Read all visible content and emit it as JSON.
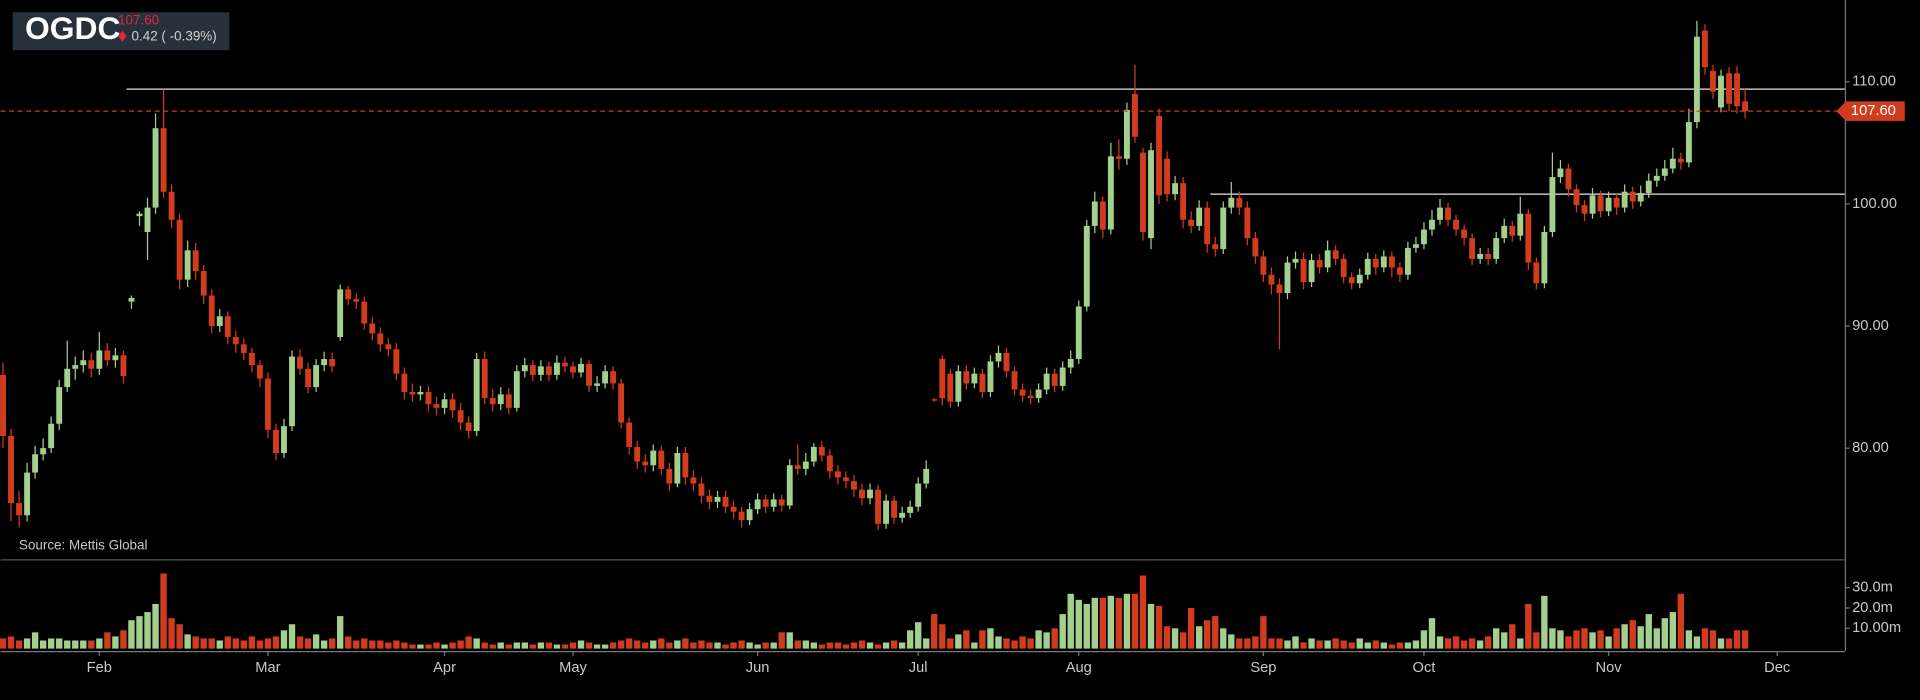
{
  "chart_data": {
    "type": "candlestick",
    "title": "OGDC",
    "last_price": {
      "value": 107.6,
      "label": "107.60"
    },
    "change": "0.42 ( -0.39%)",
    "source": "Source: Mettis Global",
    "up_color": "#a3d08c",
    "down_color": "#d23c1e",
    "ylim": [
      70.9,
      116.7
    ],
    "yticks": [
      {
        "value": 80,
        "label": "80.00"
      },
      {
        "value": 90,
        "label": "90.00"
      },
      {
        "value": 100,
        "label": "100.00"
      },
      {
        "value": 110,
        "label": "110.00"
      }
    ],
    "volume_ylim": [
      0,
      44
    ],
    "volume_yticks": [
      {
        "value": 10,
        "label": "10.00m"
      },
      {
        "value": 20,
        "label": "20.0m"
      },
      {
        "value": 30,
        "label": "30.0m"
      }
    ],
    "reference_lines": [
      {
        "value": 109.4,
        "start": 16
      },
      {
        "value": 100.8,
        "start": 151
      }
    ],
    "categories": [
      null,
      null,
      null,
      null,
      null,
      null,
      null,
      null,
      null,
      null,
      null,
      null,
      "Feb",
      null,
      null,
      null,
      null,
      null,
      null,
      null,
      null,
      null,
      null,
      null,
      null,
      null,
      null,
      null,
      null,
      null,
      null,
      null,
      null,
      "Mar",
      null,
      null,
      null,
      null,
      null,
      null,
      null,
      null,
      null,
      null,
      null,
      null,
      null,
      null,
      null,
      null,
      null,
      null,
      null,
      null,
      null,
      "Apr",
      null,
      null,
      null,
      null,
      null,
      null,
      null,
      null,
      null,
      null,
      null,
      null,
      null,
      null,
      null,
      "May",
      null,
      null,
      null,
      null,
      null,
      null,
      null,
      null,
      null,
      null,
      null,
      null,
      null,
      null,
      null,
      null,
      null,
      null,
      null,
      null,
      null,
      null,
      "Jun",
      null,
      null,
      null,
      null,
      null,
      null,
      null,
      null,
      null,
      null,
      null,
      null,
      null,
      null,
      null,
      null,
      null,
      null,
      null,
      "Jul",
      null,
      null,
      null,
      null,
      null,
      null,
      null,
      null,
      null,
      null,
      null,
      null,
      null,
      null,
      null,
      null,
      null,
      null,
      null,
      "Aug",
      null,
      null,
      null,
      null,
      null,
      null,
      null,
      null,
      null,
      null,
      null,
      null,
      null,
      null,
      null,
      null,
      null,
      null,
      null,
      null,
      null,
      null,
      "Sep",
      null,
      null,
      null,
      null,
      null,
      null,
      null,
      null,
      null,
      null,
      null,
      null,
      null,
      null,
      null,
      null,
      null,
      null,
      null,
      "Oct",
      null,
      null,
      null,
      null,
      null,
      null,
      null,
      null,
      null,
      null,
      null,
      null,
      null,
      null,
      null,
      null,
      null,
      null,
      null,
      null,
      null,
      null,
      "Nov",
      null,
      null,
      null,
      null,
      null,
      null,
      null,
      null,
      null,
      null,
      null,
      null,
      null,
      null,
      null,
      null,
      null,
      null,
      null,
      null,
      "Dec"
    ],
    "open": [
      86.0,
      81.0,
      75.5,
      74.5,
      78.0,
      79.5,
      80.0,
      82.0,
      85.0,
      86.5,
      86.8,
      87.2,
      86.5,
      88.0,
      87.2,
      87.6,
      92.0,
      99.0,
      97.7,
      99.7,
      106.2,
      101.0,
      98.7,
      93.8,
      96.2,
      94.5,
      92.5,
      90.0,
      90.8,
      89.1,
      88.5,
      87.8,
      86.8,
      85.7,
      81.5,
      79.6,
      81.8,
      87.5,
      86.5,
      85.0,
      86.8,
      87.3,
      89.1,
      93.0,
      92.2,
      92.0,
      90.2,
      89.4,
      88.5,
      88.1,
      86.1,
      84.6,
      84.4,
      84.6,
      83.6,
      83.3,
      84.0,
      83.1,
      82.1,
      81.4,
      87.3,
      84.1,
      83.6,
      84.4,
      83.3,
      86.3,
      86.8,
      86.0,
      86.7,
      86.0,
      87.0,
      86.7,
      86.2,
      86.9,
      85.1,
      85.3,
      86.3,
      85.3,
      82.1,
      80.1,
      78.9,
      78.6,
      79.8,
      78.3,
      77.1,
      79.6,
      77.6,
      77.1,
      76.1,
      75.6,
      76.0,
      75.2,
      74.8,
      74.1,
      75.0,
      75.8,
      75.2,
      75.8,
      75.3,
      78.6,
      78.3,
      78.9,
      80.1,
      79.4,
      78.1,
      77.6,
      77.3,
      76.6,
      75.9,
      76.6,
      73.8,
      75.7,
      74.3,
      74.7,
      75.2,
      77.1,
      84.0,
      87.3,
      86.1,
      83.8,
      86.3,
      85.3,
      86.1,
      84.6,
      87.1,
      87.8,
      86.3,
      84.8,
      84.3,
      84.1,
      84.8,
      86.1,
      85.1,
      86.6,
      87.3,
      91.6,
      98.2,
      100.2,
      97.9,
      103.9,
      103.7,
      109.0,
      104.2,
      97.2,
      107.2,
      103.7,
      100.8,
      101.7,
      98.7,
      98.2,
      99.7,
      96.7,
      96.3,
      99.7,
      100.5,
      99.7,
      97.2,
      95.7,
      94.2,
      93.4,
      92.7,
      95.2,
      95.5,
      93.6,
      95.4,
      94.8,
      96.2,
      95.5,
      94.0,
      93.5,
      94.2,
      95.5,
      94.8,
      95.7,
      94.8,
      94.2,
      96.4,
      96.7,
      97.9,
      98.7,
      99.7,
      98.7,
      97.9,
      97.2,
      95.5,
      95.9,
      95.5,
      97.2,
      98.2,
      97.4,
      99.2,
      95.2,
      93.5,
      97.7,
      102.2,
      102.9,
      101.2,
      99.9,
      99.2,
      100.7,
      99.4,
      100.5,
      99.7,
      101.0,
      100.2,
      100.9,
      101.9,
      102.3,
      102.9,
      103.7,
      103.4,
      106.7,
      114.2,
      110.9,
      107.9,
      110.7,
      110.7,
      108.4,
      null,
      null,
      null,
      null
    ],
    "high": [
      87.0,
      81.6,
      76.5,
      78.8,
      80.2,
      80.8,
      82.6,
      85.6,
      88.8,
      87.5,
      88.0,
      87.8,
      89.5,
      88.6,
      88.2,
      88.0,
      92.5,
      99.4,
      100.5,
      107.4,
      109.4,
      101.6,
      99.2,
      97.0,
      96.8,
      95.0,
      93.0,
      91.4,
      91.2,
      89.6,
      89.0,
      88.2,
      87.2,
      86.2,
      82.0,
      82.4,
      88.0,
      88.1,
      87.0,
      87.3,
      87.9,
      87.8,
      93.4,
      93.3,
      92.7,
      92.4,
      90.7,
      89.9,
      89.0,
      88.6,
      86.6,
      85.3,
      85.1,
      85.1,
      84.2,
      84.5,
      84.5,
      83.7,
      82.6,
      87.8,
      87.9,
      84.8,
      85.0,
      84.9,
      86.8,
      87.4,
      87.2,
      87.2,
      87.1,
      87.6,
      87.5,
      87.1,
      87.4,
      87.2,
      85.9,
      86.8,
      86.7,
      85.7,
      82.5,
      80.6,
      79.5,
      80.3,
      80.2,
      78.8,
      80.1,
      80.1,
      78.2,
      77.6,
      76.6,
      76.5,
      76.5,
      75.7,
      75.2,
      75.5,
      76.3,
      76.2,
      76.3,
      76.2,
      79.1,
      80.3,
      79.6,
      80.4,
      80.6,
      79.9,
      78.6,
      78.1,
      77.8,
      77.1,
      77.1,
      77.0,
      76.2,
      76.1,
      75.2,
      75.7,
      77.6,
      79.0,
      84.1,
      87.6,
      86.5,
      86.8,
      86.8,
      86.6,
      86.5,
      87.6,
      88.4,
      88.2,
      86.7,
      85.3,
      84.8,
      85.3,
      86.6,
      86.5,
      87.1,
      88.0,
      92.1,
      98.7,
      101.0,
      100.6,
      105.0,
      105.3,
      108.3,
      111.4,
      104.6,
      105.0,
      107.8,
      104.3,
      102.3,
      102.2,
      99.4,
      100.3,
      100.2,
      97.3,
      100.2,
      101.8,
      101.0,
      100.2,
      97.7,
      96.2,
      94.8,
      93.9,
      95.7,
      96.1,
      96.0,
      95.9,
      95.9,
      97.0,
      96.6,
      95.9,
      94.4,
      94.7,
      96.0,
      95.9,
      96.2,
      96.1,
      95.2,
      96.9,
      97.3,
      98.5,
      99.5,
      100.4,
      100.1,
      99.1,
      98.3,
      97.6,
      96.4,
      96.4,
      97.7,
      98.8,
      98.6,
      100.6,
      99.6,
      95.6,
      98.2,
      104.2,
      103.6,
      103.3,
      101.6,
      100.3,
      101.3,
      101.1,
      101.0,
      100.9,
      101.6,
      101.4,
      101.5,
      102.5,
      102.9,
      103.6,
      104.6,
      104.2,
      107.8,
      115.0,
      114.7,
      111.4,
      111.0,
      111.2,
      111.3,
      109.4,
      null,
      null,
      null,
      null
    ],
    "low": [
      80.0,
      74.0,
      73.5,
      74.0,
      77.5,
      79.0,
      79.6,
      81.5,
      84.6,
      85.6,
      86.2,
      85.8,
      86.0,
      86.7,
      86.6,
      85.3,
      91.4,
      98.2,
      95.4,
      99.2,
      100.5,
      98.0,
      93.0,
      93.2,
      93.8,
      91.8,
      89.4,
      89.5,
      88.5,
      87.8,
      87.2,
      86.2,
      85.0,
      80.8,
      79.0,
      79.2,
      81.4,
      86.0,
      84.5,
      84.6,
      86.3,
      86.2,
      88.8,
      91.7,
      91.4,
      89.7,
      88.8,
      87.9,
      87.5,
      85.6,
      84.0,
      83.8,
      83.9,
      83.0,
      82.7,
      82.8,
      82.5,
      81.5,
      80.8,
      81.0,
      83.6,
      83.0,
      83.1,
      82.8,
      83.0,
      85.8,
      85.5,
      85.5,
      85.5,
      85.6,
      86.2,
      85.7,
      85.8,
      84.6,
      84.6,
      84.9,
      84.8,
      81.6,
      79.5,
      78.3,
      78.0,
      78.1,
      77.8,
      76.5,
      76.8,
      77.0,
      76.5,
      75.5,
      75.0,
      75.1,
      74.7,
      74.2,
      73.5,
      73.7,
      74.6,
      74.7,
      74.8,
      74.8,
      75.0,
      77.8,
      77.8,
      78.5,
      78.9,
      77.5,
      77.0,
      76.7,
      76.0,
      75.3,
      75.4,
      73.3,
      73.4,
      73.8,
      73.9,
      74.3,
      74.8,
      76.7,
      83.8,
      83.5,
      83.3,
      83.4,
      84.8,
      84.9,
      84.1,
      84.2,
      86.6,
      85.8,
      84.3,
      83.8,
      83.6,
      83.7,
      84.4,
      84.6,
      84.7,
      86.1,
      86.9,
      91.2,
      97.6,
      97.2,
      97.5,
      102.8,
      103.2,
      105.0,
      97.0,
      96.3,
      100.0,
      100.2,
      100.3,
      98.0,
      97.6,
      97.8,
      96.0,
      95.7,
      95.9,
      99.2,
      99.1,
      96.6,
      95.1,
      93.6,
      92.6,
      88.1,
      92.2,
      94.7,
      93.0,
      93.2,
      94.3,
      94.4,
      95.0,
      93.5,
      93.0,
      93.1,
      93.8,
      94.2,
      94.4,
      94.0,
      93.6,
      93.8,
      96.0,
      96.3,
      97.4,
      98.3,
      98.2,
      97.4,
      96.6,
      95.0,
      95.1,
      95.0,
      95.1,
      96.8,
      96.9,
      97.0,
      94.6,
      93.0,
      93.1,
      97.3,
      101.7,
      100.6,
      99.3,
      98.6,
      98.8,
      98.9,
      99.0,
      99.1,
      99.3,
      99.6,
      99.8,
      100.5,
      101.4,
      101.9,
      102.5,
      102.8,
      103.0,
      106.2,
      110.6,
      108.6,
      107.5,
      107.6,
      107.4,
      107.0,
      null,
      null,
      null,
      null
    ],
    "close": [
      81.0,
      75.5,
      74.5,
      78.0,
      79.5,
      80.0,
      82.0,
      85.0,
      86.5,
      86.8,
      87.2,
      86.5,
      88.0,
      87.2,
      87.6,
      85.9,
      92.3,
      99.2,
      99.7,
      106.2,
      101.0,
      98.7,
      93.8,
      96.2,
      94.5,
      92.5,
      90.0,
      90.8,
      89.1,
      88.5,
      87.8,
      86.8,
      85.7,
      81.5,
      79.6,
      81.8,
      87.5,
      86.5,
      85.0,
      86.8,
      87.3,
      86.7,
      93.0,
      92.2,
      92.0,
      90.2,
      89.4,
      88.5,
      88.1,
      86.1,
      84.6,
      84.4,
      84.6,
      83.6,
      83.3,
      84.0,
      83.1,
      82.1,
      81.4,
      87.3,
      84.1,
      83.6,
      84.4,
      83.3,
      86.3,
      86.8,
      86.0,
      86.7,
      86.0,
      87.0,
      86.7,
      86.2,
      86.9,
      85.1,
      85.3,
      86.3,
      85.3,
      82.1,
      80.1,
      78.9,
      78.6,
      79.8,
      78.3,
      77.1,
      79.6,
      77.6,
      77.1,
      76.1,
      75.6,
      76.0,
      75.2,
      74.8,
      74.1,
      75.0,
      75.8,
      75.2,
      75.8,
      75.3,
      78.6,
      78.3,
      78.9,
      80.1,
      79.4,
      78.1,
      77.6,
      77.3,
      76.6,
      75.9,
      76.6,
      73.8,
      75.7,
      74.3,
      74.7,
      75.2,
      77.1,
      78.3,
      83.9,
      84.1,
      83.8,
      86.3,
      85.3,
      86.1,
      84.6,
      87.1,
      87.8,
      86.3,
      84.8,
      84.3,
      84.1,
      84.8,
      86.1,
      85.1,
      86.6,
      87.3,
      91.6,
      98.2,
      100.2,
      97.9,
      103.9,
      103.7,
      107.7,
      105.5,
      97.7,
      104.4,
      100.7,
      100.8,
      101.7,
      98.7,
      98.2,
      99.7,
      96.7,
      96.3,
      99.7,
      100.5,
      99.7,
      97.2,
      95.7,
      94.2,
      93.4,
      92.7,
      95.2,
      95.5,
      93.6,
      95.4,
      94.8,
      96.2,
      95.5,
      94.0,
      93.5,
      94.2,
      95.5,
      94.8,
      95.7,
      94.8,
      94.2,
      96.4,
      96.7,
      97.9,
      98.7,
      99.7,
      98.7,
      97.9,
      97.2,
      95.5,
      95.9,
      95.5,
      97.2,
      98.2,
      97.4,
      99.2,
      95.2,
      93.5,
      97.7,
      102.2,
      102.9,
      101.2,
      99.9,
      99.2,
      100.7,
      99.4,
      100.5,
      99.7,
      101.0,
      100.2,
      100.9,
      101.9,
      102.3,
      102.9,
      103.7,
      103.4,
      106.7,
      113.7,
      111.2,
      109.2,
      110.5,
      108.2,
      108.0,
      107.6,
      null,
      null,
      null,
      null
    ],
    "volume": [
      5,
      6,
      4,
      5,
      8,
      4,
      5,
      5,
      4,
      4,
      4,
      4,
      5,
      8,
      6,
      9,
      14,
      16,
      18,
      22,
      37,
      15,
      12,
      7,
      6,
      5,
      5,
      4,
      6,
      5,
      4,
      6,
      4,
      5,
      6,
      9,
      12,
      6,
      5,
      7,
      4,
      5,
      16,
      6,
      4,
      5,
      4,
      4,
      3,
      4,
      3,
      2,
      2,
      2,
      3,
      2,
      3,
      4,
      6,
      5,
      3,
      2,
      3,
      2,
      3,
      3,
      2,
      3,
      3,
      2,
      2,
      3,
      4,
      3,
      2,
      2,
      3,
      4,
      5,
      4,
      3,
      4,
      5,
      3,
      4,
      5,
      3,
      4,
      3,
      3,
      2,
      3,
      4,
      3,
      2,
      3,
      3,
      8,
      8,
      4,
      4,
      3,
      2,
      3,
      3,
      2,
      3,
      4,
      3,
      2,
      3,
      4,
      3,
      9,
      13,
      5,
      17,
      12,
      5,
      7,
      9,
      3,
      9,
      10,
      6,
      5,
      4,
      6,
      5,
      9,
      8,
      10,
      17,
      27,
      24,
      22,
      25,
      25,
      26,
      25,
      27,
      27,
      36,
      22,
      21,
      11,
      10,
      8,
      20,
      11,
      14,
      16,
      10,
      7,
      5,
      5,
      6,
      16,
      5,
      5,
      4,
      6,
      3,
      5,
      4,
      4,
      5,
      4,
      3,
      5,
      3,
      4,
      3,
      2,
      3,
      3,
      4,
      9,
      15,
      6,
      5,
      6,
      4,
      5,
      4,
      6,
      10,
      8,
      12,
      5,
      22,
      8,
      26,
      10,
      9,
      6,
      9,
      10,
      8,
      9,
      6,
      10,
      12,
      14,
      11,
      17,
      10,
      15,
      18,
      27,
      9,
      6,
      10,
      9,
      5,
      5,
      9,
      9,
      null,
      null,
      null,
      null
    ]
  }
}
